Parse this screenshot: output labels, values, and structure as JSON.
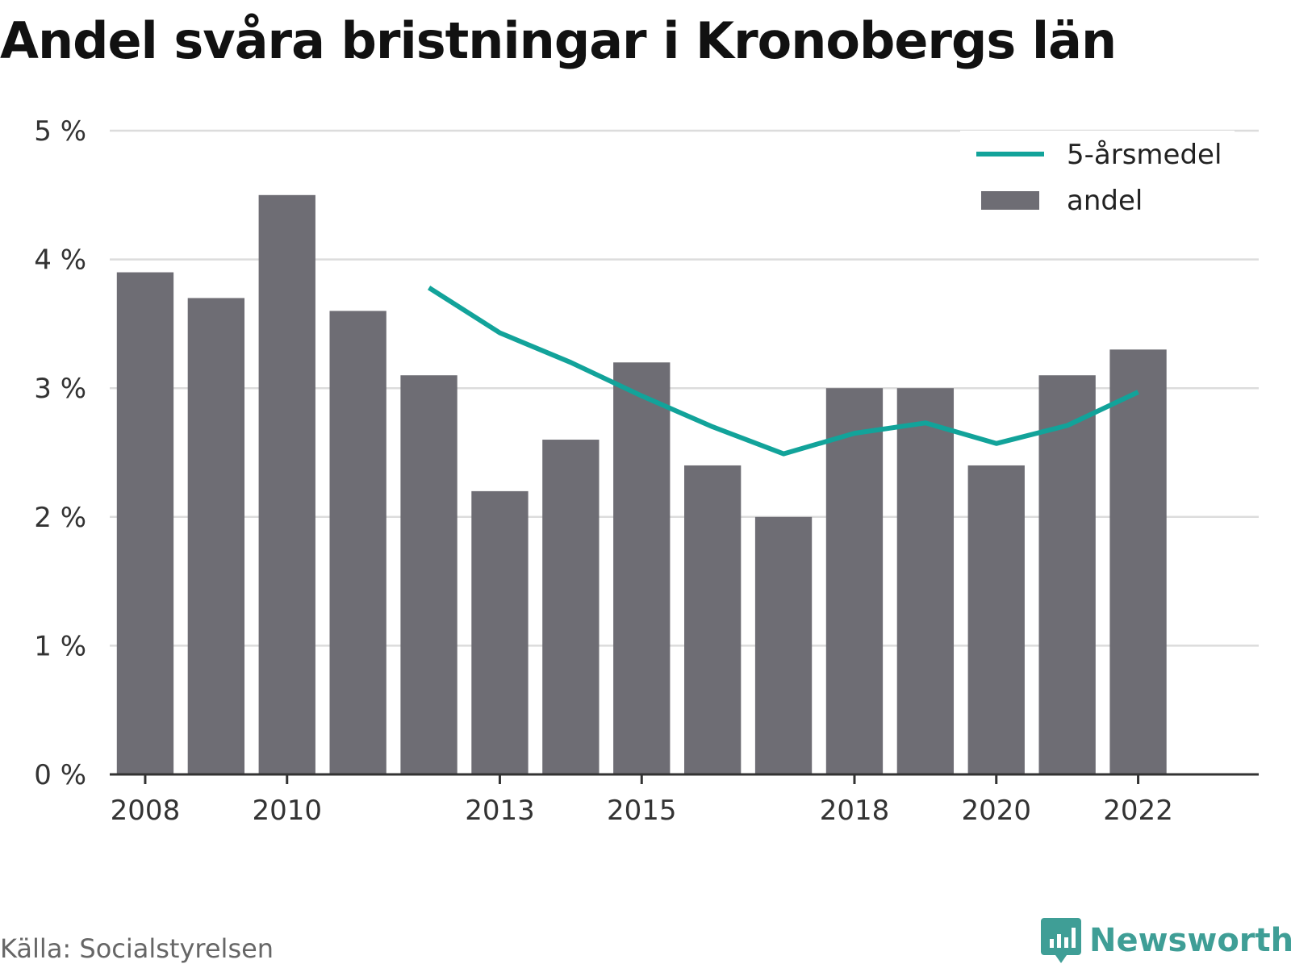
{
  "title": "Andel svåra bristningar i Kronobergs län",
  "source": "Källa: Socialstyrelsen",
  "brand": {
    "name": "Newsworthy",
    "icon": "newsworthy-logo-icon"
  },
  "colors": {
    "bar": "#6e6d74",
    "line": "#12a39a",
    "grid": "#dcdcdc",
    "axis": "#333333",
    "brand": "#3f9e96"
  },
  "chart_data": {
    "type": "bar",
    "title": "Andel svåra bristningar i Kronobergs län",
    "xlabel": "",
    "ylabel": "",
    "x": [
      2008,
      2009,
      2010,
      2011,
      2012,
      2013,
      2014,
      2015,
      2016,
      2017,
      2018,
      2019,
      2020,
      2021,
      2022
    ],
    "x_tick_labels": [
      "2008",
      "2010",
      "2013",
      "2015",
      "2018",
      "2020",
      "2022"
    ],
    "y_ticks": [
      0,
      1,
      2,
      3,
      4,
      5
    ],
    "y_tick_labels": [
      "0 %",
      "1 %",
      "2 %",
      "3 %",
      "4 %",
      "5 %"
    ],
    "ylim": [
      0,
      5
    ],
    "grid": "horizontal",
    "legend_position": "top-right",
    "series": [
      {
        "name": "5-årsmedel",
        "type": "line",
        "values": [
          null,
          null,
          null,
          null,
          3.78,
          3.43,
          3.2,
          2.94,
          2.7,
          2.49,
          2.65,
          2.73,
          2.57,
          2.71,
          2.97
        ]
      },
      {
        "name": "andel",
        "type": "bar",
        "values": [
          3.9,
          3.7,
          4.5,
          3.6,
          3.1,
          2.2,
          2.6,
          3.2,
          2.4,
          2.0,
          3.0,
          3.0,
          2.4,
          3.1,
          3.3
        ]
      }
    ]
  }
}
